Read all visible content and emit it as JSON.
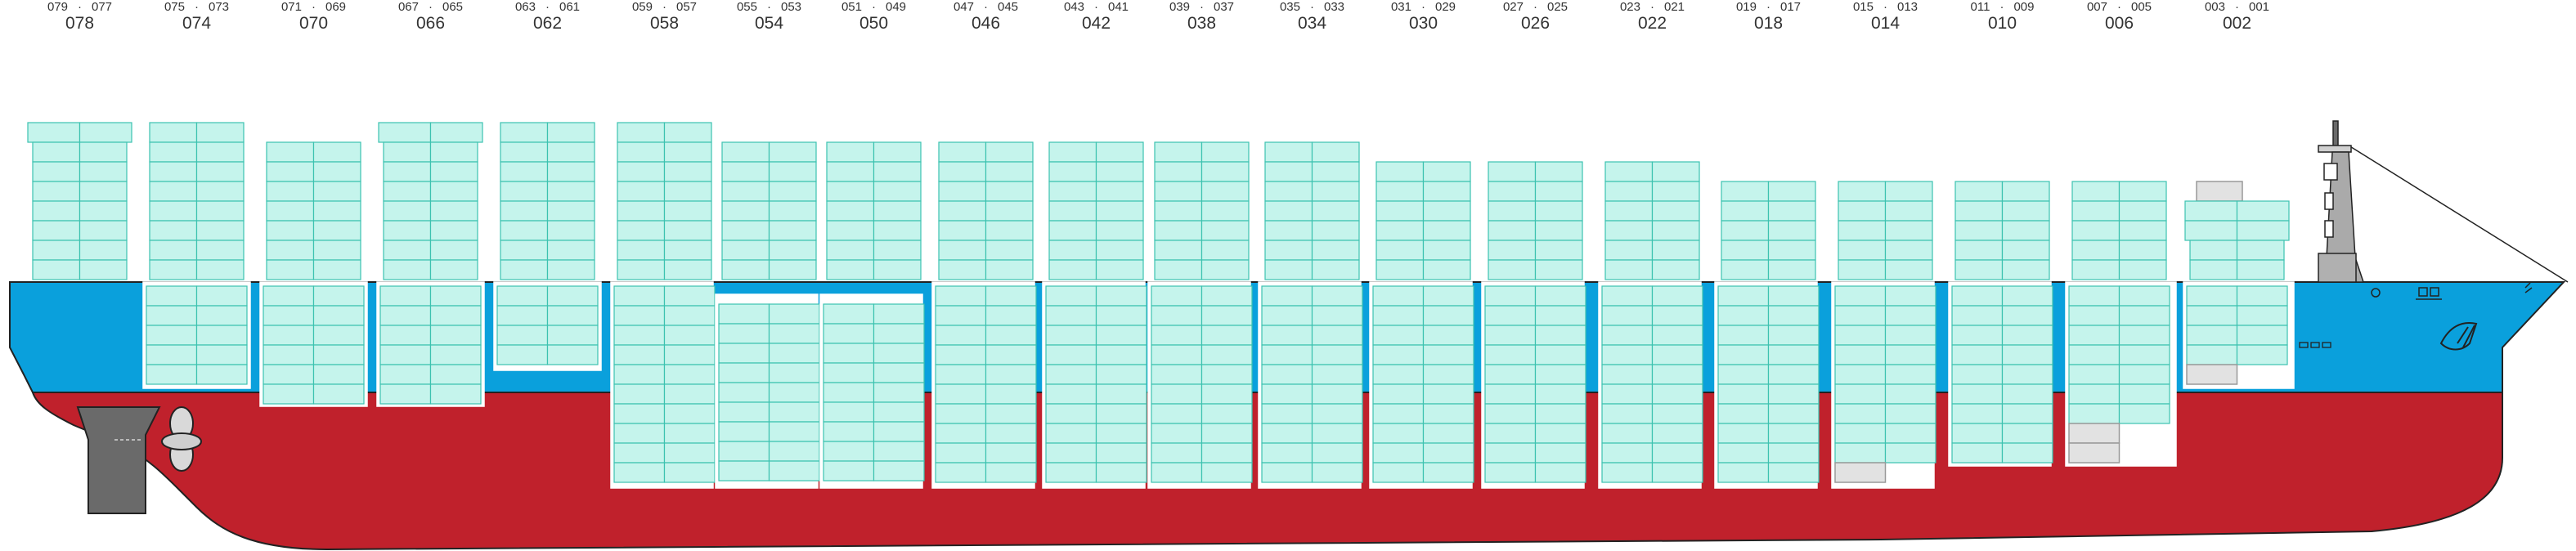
{
  "bays": [
    {
      "left": "079",
      "right": "077",
      "center": "078"
    },
    {
      "left": "075",
      "right": "073",
      "center": "074"
    },
    {
      "left": "071",
      "right": "069",
      "center": "070"
    },
    {
      "left": "067",
      "right": "065",
      "center": "066"
    },
    {
      "left": "063",
      "right": "061",
      "center": "062"
    },
    {
      "left": "059",
      "right": "057",
      "center": "058"
    },
    {
      "left": "055",
      "right": "053",
      "center": "054"
    },
    {
      "left": "051",
      "right": "049",
      "center": "050"
    },
    {
      "left": "047",
      "right": "045",
      "center": "046"
    },
    {
      "left": "043",
      "right": "041",
      "center": "042"
    },
    {
      "left": "039",
      "right": "037",
      "center": "038"
    },
    {
      "left": "035",
      "right": "033",
      "center": "034"
    },
    {
      "left": "031",
      "right": "029",
      "center": "030"
    },
    {
      "left": "027",
      "right": "025",
      "center": "026"
    },
    {
      "left": "023",
      "right": "021",
      "center": "022"
    },
    {
      "left": "019",
      "right": "017",
      "center": "018"
    },
    {
      "left": "015",
      "right": "013",
      "center": "014"
    },
    {
      "left": "011",
      "right": "009",
      "center": "010"
    },
    {
      "left": "007",
      "right": "005",
      "center": "006"
    },
    {
      "left": "003",
      "right": "001",
      "center": "002"
    }
  ],
  "colors": {
    "hull_red": "#c0212c",
    "hull_blue": "#0aa0dc",
    "container_fill": "#c5f4ec",
    "container_stroke": "#3cc2b0",
    "empty_slot": "#e2e2e2",
    "hold_white": "#ffffff",
    "rudder_grey": "#6a6a6a"
  }
}
